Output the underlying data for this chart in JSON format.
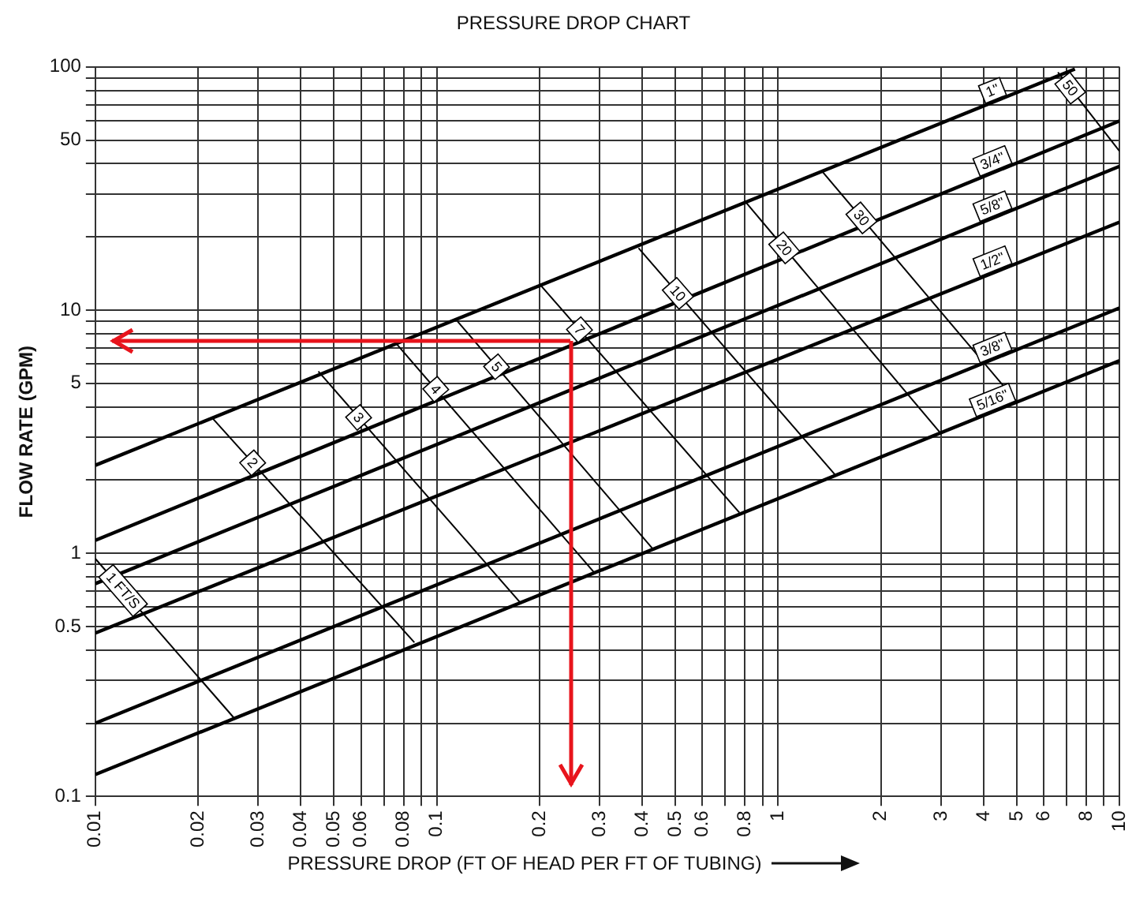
{
  "chart_data": {
    "type": "line",
    "title": "PRESSURE DROP CHART",
    "xlabel": "PRESSURE DROP (FT OF HEAD PER FT OF TUBING)",
    "ylabel": "FLOW RATE (GPM)",
    "log": "xy",
    "grid": true,
    "legend": false,
    "marker": "none",
    "line_style": "solid",
    "xlim": [
      0.01,
      10
    ],
    "ylim": [
      0.1,
      100
    ],
    "xticks": [
      0.01,
      0.02,
      0.03,
      0.04,
      0.05,
      0.06,
      {
        "value": 0.07,
        "label": null
      },
      0.08,
      {
        "value": 0.09,
        "label": null
      },
      0.1,
      0.2,
      0.3,
      0.4,
      0.5,
      0.6,
      {
        "value": 0.7,
        "label": null
      },
      0.8,
      {
        "value": 0.9,
        "label": null
      },
      1,
      2,
      3,
      4,
      5,
      6,
      {
        "value": 7,
        "label": null
      },
      8,
      {
        "value": 9,
        "label": null
      },
      10
    ],
    "yticks": [
      0.1,
      {
        "value": 0.2,
        "label": null
      },
      {
        "value": 0.3,
        "label": null
      },
      {
        "value": 0.4,
        "label": null
      },
      0.5,
      {
        "value": 0.6,
        "label": null
      },
      {
        "value": 0.7,
        "label": null
      },
      {
        "value": 0.8,
        "label": null
      },
      {
        "value": 0.9,
        "label": null
      },
      1,
      {
        "value": 2,
        "label": null
      },
      {
        "value": 3,
        "label": null
      },
      {
        "value": 4,
        "label": null
      },
      5,
      {
        "value": 6,
        "label": null
      },
      {
        "value": 7,
        "label": null
      },
      {
        "value": 8,
        "label": null
      },
      {
        "value": 9,
        "label": null
      },
      10,
      {
        "value": 20,
        "label": null
      },
      {
        "value": 30,
        "label": null
      },
      {
        "value": 40,
        "label": null
      },
      50,
      {
        "value": 60,
        "label": null
      },
      {
        "value": 70,
        "label": null
      },
      {
        "value": 80,
        "label": null
      },
      {
        "value": 90,
        "label": null
      },
      100
    ],
    "series": [
      {
        "name": "1\"",
        "color": "#000000",
        "x": [
          0.01,
          7.4
        ],
        "values": [
          2.3,
          98
        ]
      },
      {
        "name": "3/4\"",
        "color": "#000000",
        "x": [
          0.01,
          10
        ],
        "values": [
          1.13,
          60
        ]
      },
      {
        "name": "5/8\"",
        "color": "#000000",
        "x": [
          0.01,
          10
        ],
        "values": [
          0.75,
          39
        ]
      },
      {
        "name": "1/2\"",
        "color": "#000000",
        "x": [
          0.01,
          10
        ],
        "values": [
          0.47,
          23
        ]
      },
      {
        "name": "3/8\"",
        "color": "#000000",
        "x": [
          0.01,
          10
        ],
        "values": [
          0.2,
          10.2
        ]
      },
      {
        "name": "5/16\"",
        "color": "#000000",
        "x": [
          0.01,
          10
        ],
        "values": [
          0.123,
          6.2
        ]
      },
      {
        "name": "1 FT/S",
        "color": "#000000",
        "x": [
          0.01,
          0.0255
        ],
        "values": [
          0.95,
          0.21
        ]
      },
      {
        "name": "2",
        "color": "#000000",
        "x": [
          0.022,
          0.086
        ],
        "values": [
          3.6,
          0.43
        ]
      },
      {
        "name": "3",
        "color": "#000000",
        "x": [
          0.045,
          0.175
        ],
        "values": [
          5.6,
          0.63
        ]
      },
      {
        "name": "4",
        "color": "#000000",
        "x": [
          0.076,
          0.29
        ],
        "values": [
          7.3,
          0.83
        ]
      },
      {
        "name": "5",
        "color": "#000000",
        "x": [
          0.115,
          0.43
        ],
        "values": [
          9.0,
          1.04
        ]
      },
      {
        "name": "7",
        "color": "#000000",
        "x": [
          0.2,
          0.77
        ],
        "values": [
          12.8,
          1.47
        ]
      },
      {
        "name": "10",
        "color": "#000000",
        "x": [
          0.39,
          1.47
        ],
        "values": [
          18,
          2.1
        ]
      },
      {
        "name": "20",
        "color": "#000000",
        "x": [
          0.8,
          3.0
        ],
        "values": [
          28,
          3.1
        ]
      },
      {
        "name": "30",
        "color": "#000000",
        "x": [
          1.35,
          5.0
        ],
        "values": [
          37,
          4.2
        ]
      },
      {
        "name": "50",
        "color": "#000000",
        "x": [
          6.6,
          10
        ],
        "values": [
          95,
          45
        ]
      }
    ]
  }
}
